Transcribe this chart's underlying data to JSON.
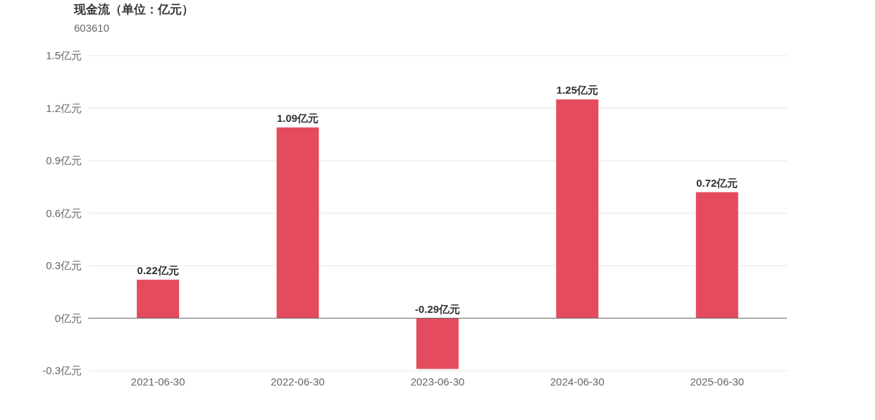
{
  "chart_data": {
    "type": "bar",
    "title": "现金流（单位：亿元）",
    "subtitle": "603610",
    "categories": [
      "2021-06-30",
      "2022-06-30",
      "2023-06-30",
      "2024-06-30",
      "2025-06-30"
    ],
    "values": [
      0.22,
      1.09,
      -0.29,
      1.25,
      0.72
    ],
    "value_labels": [
      "0.22亿元",
      "1.09亿元",
      "-0.29亿元",
      "1.25亿元",
      "0.72亿元"
    ],
    "color": "#e54b5e",
    "ylim": [
      -0.3,
      1.5
    ],
    "yticks": [
      {
        "value": -0.3,
        "label": "-0.3亿元"
      },
      {
        "value": 0,
        "label": "0亿元"
      },
      {
        "value": 0.3,
        "label": "0.3亿元"
      },
      {
        "value": 0.6,
        "label": "0.6亿元"
      },
      {
        "value": 0.9,
        "label": "0.9亿元"
      },
      {
        "value": 1.2,
        "label": "1.2亿元"
      },
      {
        "value": 1.5,
        "label": "1.5亿元"
      }
    ],
    "grid": "y"
  }
}
